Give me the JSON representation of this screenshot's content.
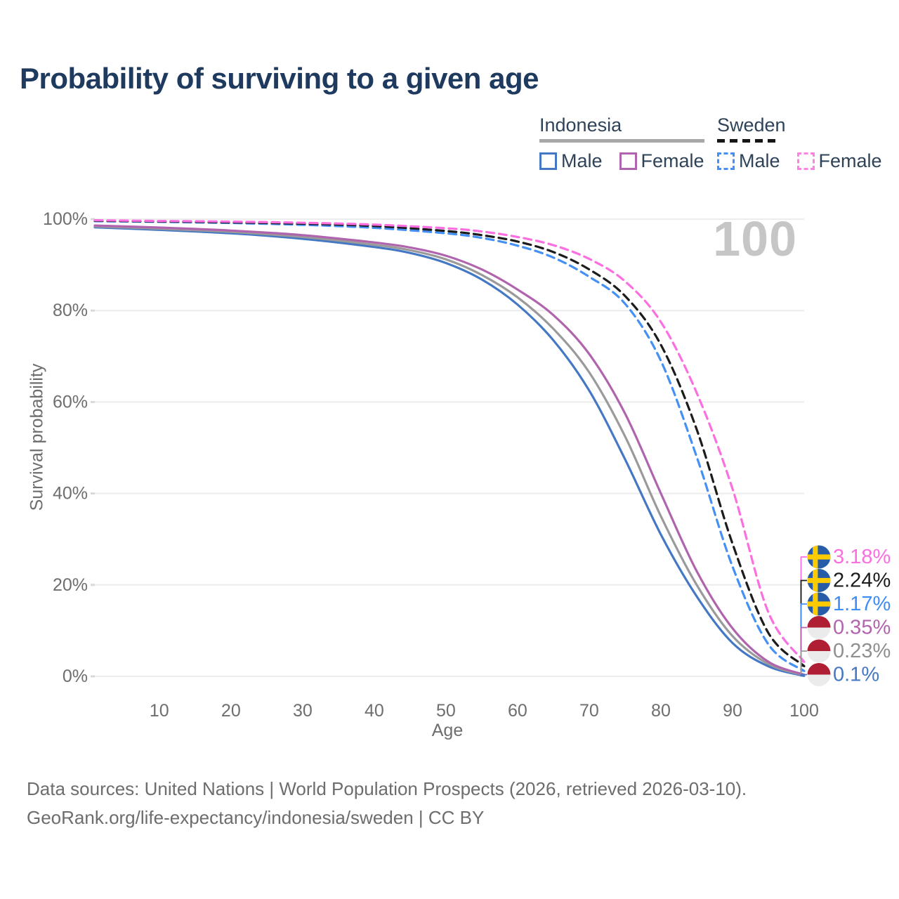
{
  "title": "Probability of surviving to a given age",
  "watermark": "100",
  "legend": {
    "groups": [
      {
        "label": "Indonesia",
        "line_style": "solid",
        "underline_color": "#a8a8a8",
        "items": [
          {
            "label": "Male",
            "color": "#4478c4",
            "dashed": false
          },
          {
            "label": "Female",
            "color": "#b164ae",
            "dashed": false
          }
        ]
      },
      {
        "label": "Sweden",
        "line_style": "dashed",
        "underline_color": "#161616",
        "items": [
          {
            "label": "Male",
            "color": "#4490f4",
            "dashed": true
          },
          {
            "label": "Female",
            "color": "#fc82e4",
            "dashed": true
          }
        ]
      }
    ]
  },
  "axes": {
    "y_label": "Survival probability",
    "x_label": "Age",
    "y_ticks": [
      {
        "value": 100,
        "label": "100%"
      },
      {
        "value": 80,
        "label": "80%"
      },
      {
        "value": 60,
        "label": "60%"
      },
      {
        "value": 40,
        "label": "40%"
      },
      {
        "value": 20,
        "label": "20%"
      },
      {
        "value": 0,
        "label": "0%"
      }
    ],
    "x_ticks": [
      {
        "value": 10,
        "label": "10"
      },
      {
        "value": 20,
        "label": "20"
      },
      {
        "value": 30,
        "label": "30"
      },
      {
        "value": 40,
        "label": "40"
      },
      {
        "value": 50,
        "label": "50"
      },
      {
        "value": 60,
        "label": "60"
      },
      {
        "value": 70,
        "label": "70"
      },
      {
        "value": 80,
        "label": "80"
      },
      {
        "value": 90,
        "label": "90"
      },
      {
        "value": 100,
        "label": "100"
      }
    ]
  },
  "chart_data": {
    "type": "line",
    "title": "Probability of surviving to a given age",
    "xlabel": "Age",
    "ylabel": "Survival probability",
    "xlim": [
      1,
      100
    ],
    "ylim": [
      0,
      100
    ],
    "grid": "horizontal",
    "legend_position": "top-right",
    "series": [
      {
        "key": "id_male",
        "name": "Indonesia Male",
        "country": "Indonesia",
        "sex": "Male",
        "color": "#4478c4",
        "dashed": false,
        "points": [
          [
            1,
            98.2
          ],
          [
            10,
            97.65
          ],
          [
            20,
            96.9
          ],
          [
            30,
            95.7
          ],
          [
            40,
            93.9
          ],
          [
            45,
            92.6
          ],
          [
            50,
            90.4
          ],
          [
            55,
            86.8
          ],
          [
            60,
            81.3
          ],
          [
            65,
            73.5
          ],
          [
            70,
            62.5
          ],
          [
            75,
            47.5
          ],
          [
            80,
            31
          ],
          [
            85,
            17.5
          ],
          [
            90,
            7.3
          ],
          [
            95,
            2.2
          ],
          [
            100,
            0.1
          ]
        ]
      },
      {
        "key": "id_all",
        "name": "Indonesia Both sexes",
        "country": "Indonesia",
        "sex": "Both",
        "color": "#9a9a9a",
        "dashed": false,
        "points": [
          [
            1,
            98.4
          ],
          [
            10,
            97.9
          ],
          [
            20,
            97.2
          ],
          [
            30,
            96.1
          ],
          [
            40,
            94.4
          ],
          [
            45,
            93.2
          ],
          [
            50,
            91.2
          ],
          [
            55,
            87.8
          ],
          [
            60,
            82.9
          ],
          [
            65,
            76
          ],
          [
            70,
            66.5
          ],
          [
            75,
            52.5
          ],
          [
            80,
            35
          ],
          [
            85,
            20
          ],
          [
            90,
            8.8
          ],
          [
            95,
            2.7
          ],
          [
            100,
            0.23
          ]
        ]
      },
      {
        "key": "id_female",
        "name": "Indonesia Female",
        "country": "Indonesia",
        "sex": "Female",
        "color": "#b164ae",
        "dashed": false,
        "points": [
          [
            1,
            98.6
          ],
          [
            10,
            98.15
          ],
          [
            20,
            97.5
          ],
          [
            30,
            96.5
          ],
          [
            40,
            94.9
          ],
          [
            45,
            93.8
          ],
          [
            50,
            92.0
          ],
          [
            55,
            89.0
          ],
          [
            60,
            84.6
          ],
          [
            65,
            79
          ],
          [
            70,
            70.5
          ],
          [
            75,
            57.5
          ],
          [
            80,
            40
          ],
          [
            85,
            23
          ],
          [
            90,
            10.5
          ],
          [
            95,
            3.2
          ],
          [
            100,
            0.35
          ]
        ]
      },
      {
        "key": "se_male",
        "name": "Sweden Male",
        "country": "Sweden",
        "sex": "Male",
        "color": "#4490f4",
        "dashed": true,
        "points": [
          [
            1,
            99.55
          ],
          [
            10,
            99.4
          ],
          [
            20,
            99.15
          ],
          [
            30,
            98.75
          ],
          [
            40,
            98.1
          ],
          [
            50,
            96.9
          ],
          [
            55,
            95.9
          ],
          [
            60,
            94.2
          ],
          [
            65,
            91.6
          ],
          [
            70,
            87.4
          ],
          [
            75,
            81.5
          ],
          [
            80,
            69
          ],
          [
            85,
            48
          ],
          [
            90,
            24
          ],
          [
            95,
            7
          ],
          [
            100,
            1.17
          ]
        ]
      },
      {
        "key": "se_all",
        "name": "Sweden Both sexes",
        "country": "Sweden",
        "sex": "Both",
        "color": "#1c1c1c",
        "dashed": true,
        "points": [
          [
            1,
            99.65
          ],
          [
            10,
            99.5
          ],
          [
            20,
            99.3
          ],
          [
            30,
            99.0
          ],
          [
            40,
            98.5
          ],
          [
            50,
            97.4
          ],
          [
            55,
            96.5
          ],
          [
            60,
            95.1
          ],
          [
            65,
            92.8
          ],
          [
            70,
            89.0
          ],
          [
            75,
            83.2
          ],
          [
            80,
            72.5
          ],
          [
            85,
            54
          ],
          [
            90,
            29
          ],
          [
            95,
            9.5
          ],
          [
            100,
            2.24
          ]
        ]
      },
      {
        "key": "se_female",
        "name": "Sweden Female",
        "country": "Sweden",
        "sex": "Female",
        "color": "#fb6fe0",
        "dashed": true,
        "points": [
          [
            1,
            99.75
          ],
          [
            10,
            99.6
          ],
          [
            20,
            99.45
          ],
          [
            30,
            99.2
          ],
          [
            40,
            98.8
          ],
          [
            50,
            98.0
          ],
          [
            55,
            97.3
          ],
          [
            60,
            96.1
          ],
          [
            65,
            94.3
          ],
          [
            70,
            91.3
          ],
          [
            75,
            86.4
          ],
          [
            80,
            77.5
          ],
          [
            85,
            62
          ],
          [
            90,
            41
          ],
          [
            95,
            14
          ],
          [
            100,
            3.18
          ]
        ]
      }
    ]
  },
  "end_labels": [
    {
      "series": "se_female",
      "text": "3.18%",
      "value": 3.18,
      "color": "#fb6fe0",
      "flag": "sweden"
    },
    {
      "series": "se_all",
      "text": "2.24%",
      "value": 2.24,
      "color": "#1c1c1c",
      "flag": "sweden"
    },
    {
      "series": "se_male",
      "text": "1.17%",
      "value": 1.17,
      "color": "#3f8cf2",
      "flag": "sweden"
    },
    {
      "series": "id_female",
      "text": "0.35%",
      "value": 0.35,
      "color": "#b264ae",
      "flag": "indonesia"
    },
    {
      "series": "id_all",
      "text": "0.23%",
      "value": 0.23,
      "color": "#8f8f8f",
      "flag": "indonesia"
    },
    {
      "series": "id_male",
      "text": "0.1%",
      "value": 0.1,
      "color": "#4478c4",
      "flag": "indonesia"
    }
  ],
  "flags": {
    "sweden": {
      "base": "#275da8",
      "cross": "#fecb00"
    },
    "indonesia": {
      "top": "#b01e33",
      "bottom": "#ebebeb"
    }
  },
  "footer": {
    "line1": "Data sources: United Nations | World Population Prospects (2026, retrieved 2026-03-10).",
    "line2": "GeoRank.org/life-expectancy/indonesia/sweden | CC BY"
  }
}
